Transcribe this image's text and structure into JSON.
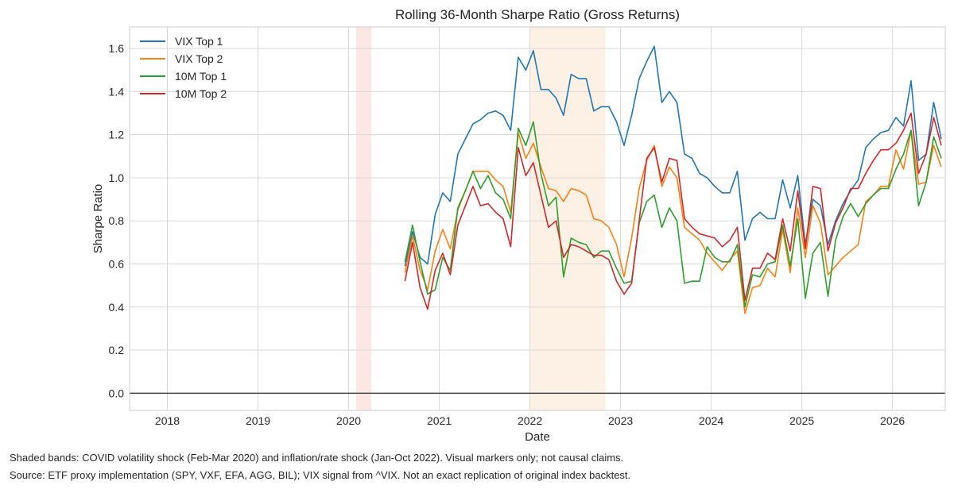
{
  "chart_data": {
    "type": "line",
    "title": "Rolling 36-Month Sharpe Ratio (Gross Returns)",
    "xlabel": "Date",
    "ylabel": "Sharpe Ratio",
    "x_tick_labels": [
      "2018",
      "2019",
      "2020",
      "2021",
      "2022",
      "2023",
      "2024",
      "2025",
      "2026"
    ],
    "y_ticks": [
      0.0,
      0.2,
      0.4,
      0.6,
      0.8,
      1.0,
      1.2,
      1.4,
      1.6
    ],
    "xlim": [
      "2017-08-01",
      "2026-07-31"
    ],
    "ylim": [
      -0.08,
      1.7
    ],
    "grid": true,
    "legend_position": "top-left",
    "zero_line": true,
    "shaded_bands": [
      {
        "start": "2020-02-01",
        "end": "2020-03-31",
        "color": "#fbe3e0"
      },
      {
        "start": "2022-01-01",
        "end": "2022-10-31",
        "color": "#fdeee2"
      }
    ],
    "dates": [
      "2020-08",
      "2020-09",
      "2020-10",
      "2020-11",
      "2020-12",
      "2021-01",
      "2021-02",
      "2021-03",
      "2021-04",
      "2021-05",
      "2021-06",
      "2021-07",
      "2021-08",
      "2021-09",
      "2021-10",
      "2021-11",
      "2021-12",
      "2022-01",
      "2022-02",
      "2022-03",
      "2022-04",
      "2022-05",
      "2022-06",
      "2022-07",
      "2022-08",
      "2022-09",
      "2022-10",
      "2022-11",
      "2022-12",
      "2023-01",
      "2023-02",
      "2023-03",
      "2023-04",
      "2023-05",
      "2023-06",
      "2023-07",
      "2023-08",
      "2023-09",
      "2023-10",
      "2023-11",
      "2023-12",
      "2024-01",
      "2024-02",
      "2024-03",
      "2024-04",
      "2024-05",
      "2024-06",
      "2024-07",
      "2024-08",
      "2024-09",
      "2024-10",
      "2024-11",
      "2024-12",
      "2025-01",
      "2025-02",
      "2025-03",
      "2025-04",
      "2025-05",
      "2025-06",
      "2025-07",
      "2025-08",
      "2025-09",
      "2025-10",
      "2025-11",
      "2025-12",
      "2026-01",
      "2026-02",
      "2026-03",
      "2026-04",
      "2026-05",
      "2026-06",
      "2026-07"
    ],
    "series": [
      {
        "name": "VIX Top 1",
        "color": "#1f77b4",
        "values": [
          0.59,
          0.75,
          0.63,
          0.6,
          0.83,
          0.93,
          0.89,
          1.11,
          1.18,
          1.25,
          1.27,
          1.3,
          1.31,
          1.29,
          1.22,
          1.56,
          1.5,
          1.59,
          1.41,
          1.41,
          1.37,
          1.29,
          1.48,
          1.46,
          1.46,
          1.31,
          1.33,
          1.33,
          1.26,
          1.15,
          1.29,
          1.46,
          1.54,
          1.61,
          1.35,
          1.4,
          1.35,
          1.11,
          1.09,
          1.02,
          1.0,
          0.96,
          0.93,
          0.93,
          1.03,
          0.71,
          0.81,
          0.84,
          0.81,
          0.81,
          0.99,
          0.86,
          1.01,
          0.69,
          0.9,
          0.87,
          0.69,
          0.8,
          0.88,
          0.94,
          0.99,
          1.14,
          1.18,
          1.21,
          1.22,
          1.28,
          1.24,
          1.45,
          1.08,
          1.11,
          1.35,
          1.18
        ]
      },
      {
        "name": "VIX Top 2",
        "color": "#ff7f0e",
        "values": [
          0.56,
          0.73,
          0.57,
          0.48,
          0.66,
          0.76,
          0.67,
          0.85,
          0.94,
          1.03,
          1.03,
          1.03,
          0.99,
          0.96,
          0.84,
          1.21,
          1.09,
          1.16,
          1.05,
          0.95,
          0.94,
          0.89,
          0.95,
          0.94,
          0.92,
          0.81,
          0.8,
          0.77,
          0.69,
          0.54,
          0.72,
          0.95,
          1.08,
          1.15,
          0.96,
          1.05,
          1.0,
          0.77,
          0.74,
          0.71,
          0.65,
          0.61,
          0.57,
          0.62,
          0.66,
          0.37,
          0.49,
          0.5,
          0.58,
          0.54,
          0.76,
          0.56,
          0.86,
          0.63,
          0.87,
          0.79,
          0.55,
          0.59,
          0.63,
          0.66,
          0.69,
          0.89,
          0.92,
          0.96,
          0.96,
          1.13,
          1.04,
          1.22,
          0.97,
          0.98,
          1.15,
          1.05
        ]
      },
      {
        "name": "10M Top 1",
        "color": "#2ca02c",
        "values": [
          0.61,
          0.78,
          0.61,
          0.46,
          0.48,
          0.63,
          0.57,
          0.86,
          0.94,
          1.03,
          0.95,
          1.01,
          0.93,
          0.9,
          0.81,
          1.23,
          1.15,
          1.26,
          1.02,
          0.87,
          0.91,
          0.54,
          0.72,
          0.7,
          0.69,
          0.63,
          0.66,
          0.66,
          0.58,
          0.51,
          0.52,
          0.79,
          0.89,
          0.92,
          0.77,
          0.86,
          0.8,
          0.51,
          0.52,
          0.52,
          0.68,
          0.63,
          0.61,
          0.61,
          0.69,
          0.4,
          0.55,
          0.54,
          0.6,
          0.61,
          0.78,
          0.59,
          0.81,
          0.44,
          0.65,
          0.7,
          0.45,
          0.71,
          0.82,
          0.88,
          0.82,
          0.88,
          0.92,
          0.95,
          0.95,
          1.04,
          1.11,
          1.22,
          0.87,
          0.98,
          1.19,
          1.09
        ]
      },
      {
        "name": "10M Top 2",
        "color": "#d62728",
        "values": [
          0.52,
          0.7,
          0.49,
          0.39,
          0.57,
          0.65,
          0.55,
          0.78,
          0.87,
          0.96,
          0.87,
          0.88,
          0.84,
          0.81,
          0.68,
          1.14,
          1.01,
          1.07,
          0.92,
          0.77,
          0.8,
          0.63,
          0.69,
          0.68,
          0.66,
          0.64,
          0.64,
          0.62,
          0.52,
          0.46,
          0.51,
          0.8,
          1.09,
          1.14,
          0.98,
          1.09,
          1.08,
          0.81,
          0.77,
          0.74,
          0.73,
          0.72,
          0.68,
          0.71,
          0.77,
          0.43,
          0.58,
          0.58,
          0.65,
          0.62,
          0.81,
          0.66,
          0.94,
          0.67,
          0.96,
          0.95,
          0.66,
          0.79,
          0.86,
          0.95,
          0.95,
          1.02,
          1.08,
          1.13,
          1.13,
          1.16,
          1.22,
          1.3,
          1.02,
          1.11,
          1.28,
          1.15
        ]
      }
    ]
  },
  "footnotes": {
    "line1": "Shaded bands: COVID volatility shock (Feb-Mar 2020) and inflation/rate shock (Jan-Oct 2022). Visual markers only; not causal claims.",
    "line2": "Source: ETF proxy implementation (SPY, VXF, EFA, AGG, BIL); VIX signal from ^VIX. Not an exact replication of original index backtest."
  }
}
